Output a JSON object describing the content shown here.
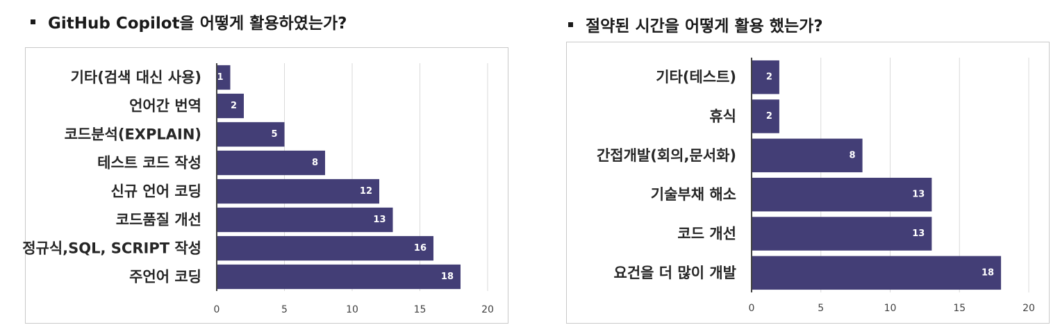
{
  "colors": {
    "bar": "#433e76",
    "grid": "#d9d9d9",
    "axis": "#404040"
  },
  "left_heading": "GitHub Copilot을 어떻게 활용하였는가?",
  "right_heading": "절약된 시간을 어떻게 활용 했는가?",
  "chart_data": [
    {
      "type": "bar",
      "orientation": "horizontal",
      "categories": [
        "기타(검색 대신 사용)",
        "언어간 번역",
        "코드분석(EXPLAIN)",
        "테스트 코드 작성",
        "신규 언어 코딩",
        "코드품질 개선",
        "정규식,SQL, SCRIPT 작성",
        "주언어 코딩"
      ],
      "values": [
        1,
        2,
        5,
        8,
        12,
        13,
        16,
        18
      ],
      "xlim": [
        0,
        20
      ],
      "xticks": [
        0,
        5,
        10,
        15,
        20
      ],
      "grid": "vertical",
      "data_labels": true
    },
    {
      "type": "bar",
      "orientation": "horizontal",
      "categories": [
        "기타(테스트)",
        "휴식",
        "간접개발(회의,문서화)",
        "기술부채 해소",
        "코드 개선",
        "요건을 더 많이 개발"
      ],
      "values": [
        2,
        2,
        8,
        13,
        13,
        18
      ],
      "xlim": [
        0,
        20
      ],
      "xticks": [
        0,
        5,
        10,
        15,
        20
      ],
      "grid": "vertical",
      "data_labels": true
    }
  ]
}
